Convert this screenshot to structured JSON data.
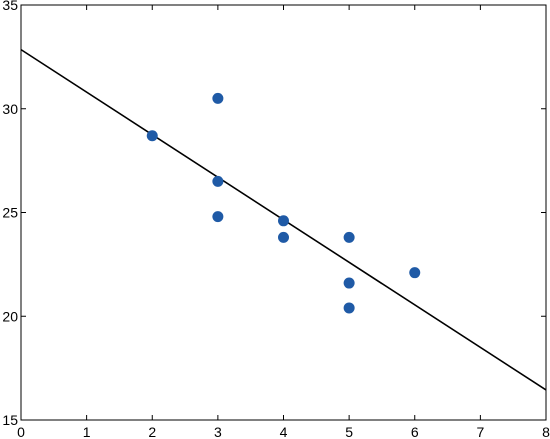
{
  "chart_data": {
    "type": "scatter",
    "title": "",
    "xlabel": "",
    "ylabel": "",
    "xlim": [
      0,
      8
    ],
    "ylim": [
      15,
      35
    ],
    "x_ticks": [
      0,
      1,
      2,
      3,
      4,
      5,
      6,
      7,
      8
    ],
    "y_ticks": [
      15,
      20,
      25,
      30,
      35
    ],
    "x_tick_labels": [
      "0",
      "1",
      "2",
      "3",
      "4",
      "5",
      "6",
      "7",
      "8"
    ],
    "y_tick_labels": [
      "15",
      "20",
      "25",
      "30",
      "35"
    ],
    "grid": false,
    "series": [
      {
        "type": "scatter",
        "color": "#1f5aa6",
        "x": [
          2,
          3,
          3,
          3,
          4,
          4,
          5,
          5,
          5,
          6
        ],
        "y": [
          28.7,
          30.5,
          26.5,
          24.8,
          24.6,
          23.8,
          23.8,
          21.6,
          20.4,
          22.1
        ]
      },
      {
        "type": "line",
        "color": "#000000",
        "x": [
          0,
          8
        ],
        "y": [
          32.85,
          16.45
        ]
      }
    ]
  }
}
